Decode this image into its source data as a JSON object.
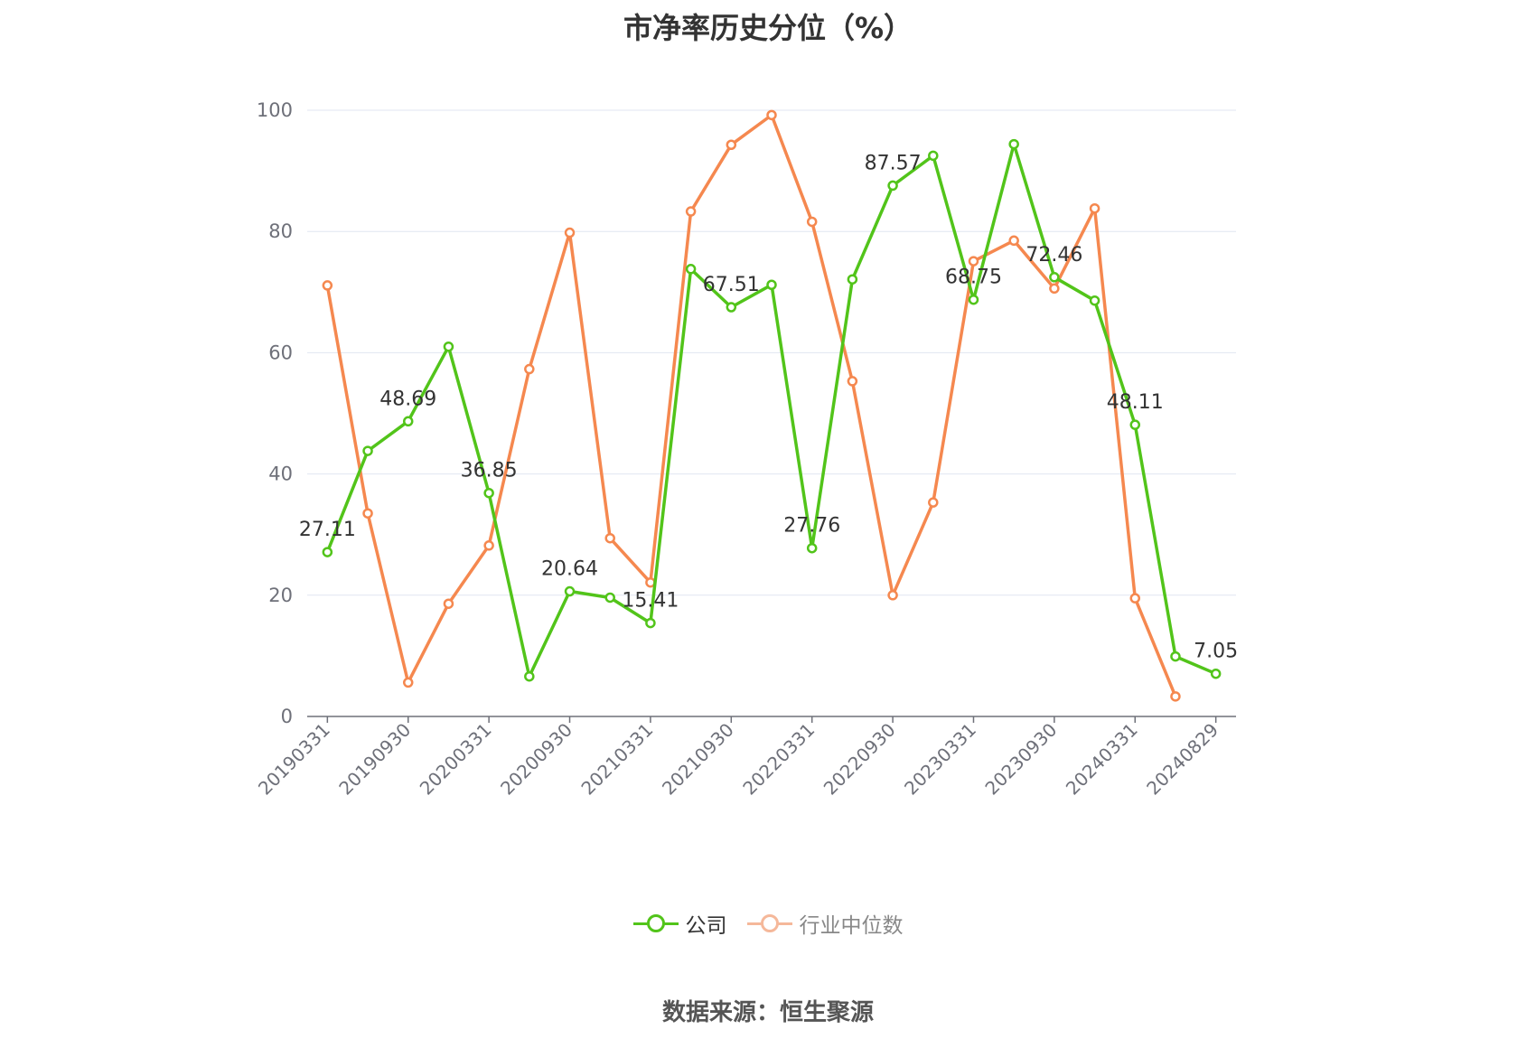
{
  "chart_data": {
    "type": "line",
    "title": "市净率历史分位（%）",
    "source": "数据来源：恒生聚源",
    "ylim": [
      0,
      100
    ],
    "yticks": [
      "0",
      "20",
      "40",
      "60",
      "80",
      "100"
    ],
    "x": [
      "20190331",
      "20190630",
      "20190930",
      "20191231",
      "20200331",
      "20200630",
      "20200930",
      "20201231",
      "20210331",
      "20210630",
      "20210930",
      "20211231",
      "20220331",
      "20220630",
      "20220930",
      "20221231",
      "20230331",
      "20230630",
      "20230930",
      "20231231",
      "20240331",
      "20240630",
      "20240829"
    ],
    "xtick_labels": [
      "20190331",
      "20190930",
      "20200331",
      "20200930",
      "20210331",
      "20210930",
      "20220331",
      "20220930",
      "20230331",
      "20230930",
      "20240331",
      "20240829"
    ],
    "grid": true,
    "legend_position": "bottom",
    "series": [
      {
        "name": "公司",
        "color": "#52c41a",
        "values": [
          27.11,
          43.8,
          48.69,
          61.0,
          36.85,
          6.6,
          20.64,
          19.6,
          15.41,
          73.8,
          67.51,
          71.2,
          27.76,
          72.1,
          87.57,
          92.5,
          68.75,
          94.4,
          72.46,
          68.6,
          48.11,
          9.9,
          7.05
        ],
        "labels": [
          "27.11",
          "",
          "48.69",
          "",
          "36.85",
          "",
          "20.64",
          "",
          "15.41",
          "",
          "67.51",
          "",
          "27.76",
          "",
          "87.57",
          "",
          "68.75",
          "",
          "72.46",
          "",
          "48.11",
          "",
          "7.05"
        ]
      },
      {
        "name": "行业中位数",
        "color": "#f5884f",
        "values": [
          71.1,
          33.5,
          5.6,
          18.6,
          28.2,
          57.3,
          79.8,
          29.4,
          22.1,
          83.3,
          94.3,
          99.2,
          81.6,
          55.3,
          20.0,
          35.3,
          75.1,
          78.5,
          70.6,
          83.8,
          19.5,
          3.3,
          null
        ]
      }
    ]
  }
}
